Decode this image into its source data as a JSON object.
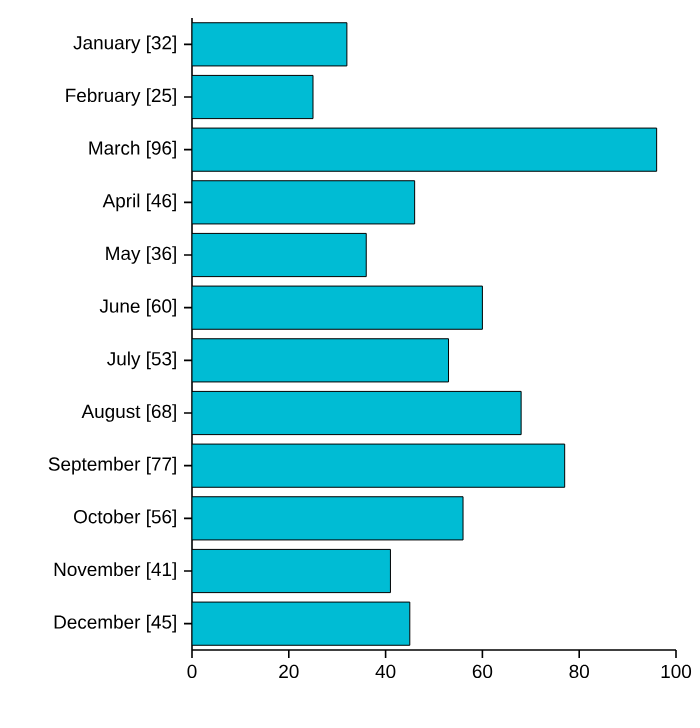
{
  "chart_data": {
    "type": "bar",
    "orientation": "horizontal",
    "categories": [
      "January [32]",
      "February [25]",
      "March [96]",
      "April [46]",
      "May [36]",
      "June [60]",
      "July [53]",
      "August [68]",
      "September [77]",
      "October [56]",
      "November [41]",
      "December [45]"
    ],
    "values": [
      32,
      25,
      96,
      46,
      36,
      60,
      53,
      68,
      77,
      56,
      41,
      45
    ],
    "color": "#00bcd4",
    "xlim": [
      0,
      100
    ],
    "xticks": [
      0,
      20,
      40,
      60,
      80,
      100
    ]
  }
}
